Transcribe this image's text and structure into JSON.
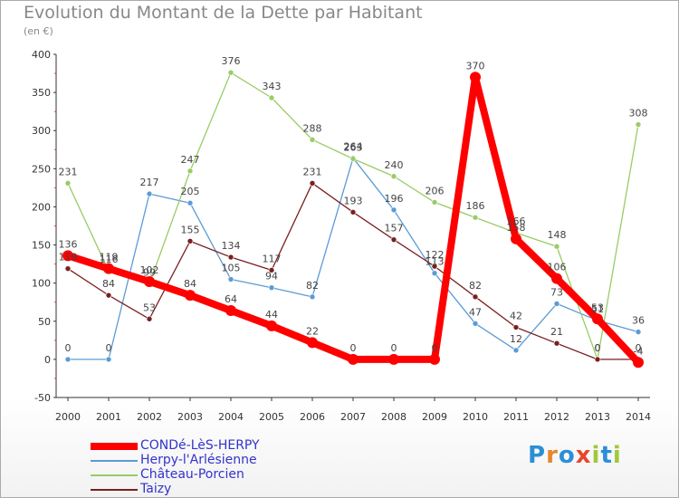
{
  "title": "Evolution du Montant de la Dette par Habitant",
  "subtitle": "(en €)",
  "brand": {
    "letters": [
      "P",
      "r",
      "o",
      "x",
      "i",
      "t",
      "i"
    ],
    "colors": [
      "#2b8fd6",
      "#e8862a",
      "#2b8fd6",
      "#e8462a",
      "#a0c83a",
      "#2b8fd6",
      "#a0c83a"
    ]
  },
  "chart_data": {
    "type": "line",
    "x": [
      "2000",
      "2001",
      "2002",
      "2003",
      "2004",
      "2005",
      "2006",
      "2007",
      "2008",
      "2009",
      "2010",
      "2011",
      "2012",
      "2013",
      "2014"
    ],
    "ylim": [
      -50,
      400
    ],
    "yticks": [
      "-50",
      "0",
      "50",
      "100",
      "150",
      "200",
      "250",
      "300",
      "350",
      "400"
    ],
    "grid": false,
    "legend_position": "bottom-left",
    "series": [
      {
        "name": "CONDé-LèS-HERPY",
        "color": "#ff0000",
        "values": [
          136,
          119,
          102,
          84,
          64,
          44,
          22,
          0,
          0,
          0,
          370,
          158,
          106,
          53,
          -4
        ],
        "labels": [
          "136",
          "119",
          "102",
          "84",
          "64",
          "44",
          "22",
          "0",
          "0",
          "0",
          "370",
          "158",
          "106",
          "53",
          "-4"
        ]
      },
      {
        "name": "Herpy-l'Arlésienne",
        "color": "#5b9bd5",
        "values": [
          0,
          0,
          217,
          205,
          105,
          94,
          82,
          264,
          196,
          113,
          47,
          12,
          73,
          51,
          36
        ],
        "labels": [
          "0",
          "0",
          "217",
          "205",
          "105",
          "94",
          "82",
          "264",
          "196",
          "113",
          "47",
          "12",
          "73",
          "51",
          "36"
        ]
      },
      {
        "name": "Château-Porcien",
        "color": "#99cc66",
        "values": [
          231,
          116,
          99,
          247,
          376,
          343,
          288,
          263,
          240,
          206,
          186,
          166,
          148,
          0,
          308
        ],
        "labels": [
          "231",
          "116",
          "99",
          "247",
          "376",
          "343",
          "288",
          "263",
          "240",
          "206",
          "186",
          "166",
          "148",
          "0",
          "308"
        ]
      },
      {
        "name": "Taizy",
        "color": "#7a1f1f",
        "values": [
          119,
          84,
          53,
          155,
          134,
          117,
          231,
          193,
          157,
          122,
          82,
          42,
          21,
          0,
          0
        ],
        "labels": [
          "119",
          "84",
          "53",
          "155",
          "134",
          "117",
          "231",
          "193",
          "157",
          "122",
          "82",
          "42",
          "21",
          "0",
          "0"
        ]
      }
    ]
  }
}
